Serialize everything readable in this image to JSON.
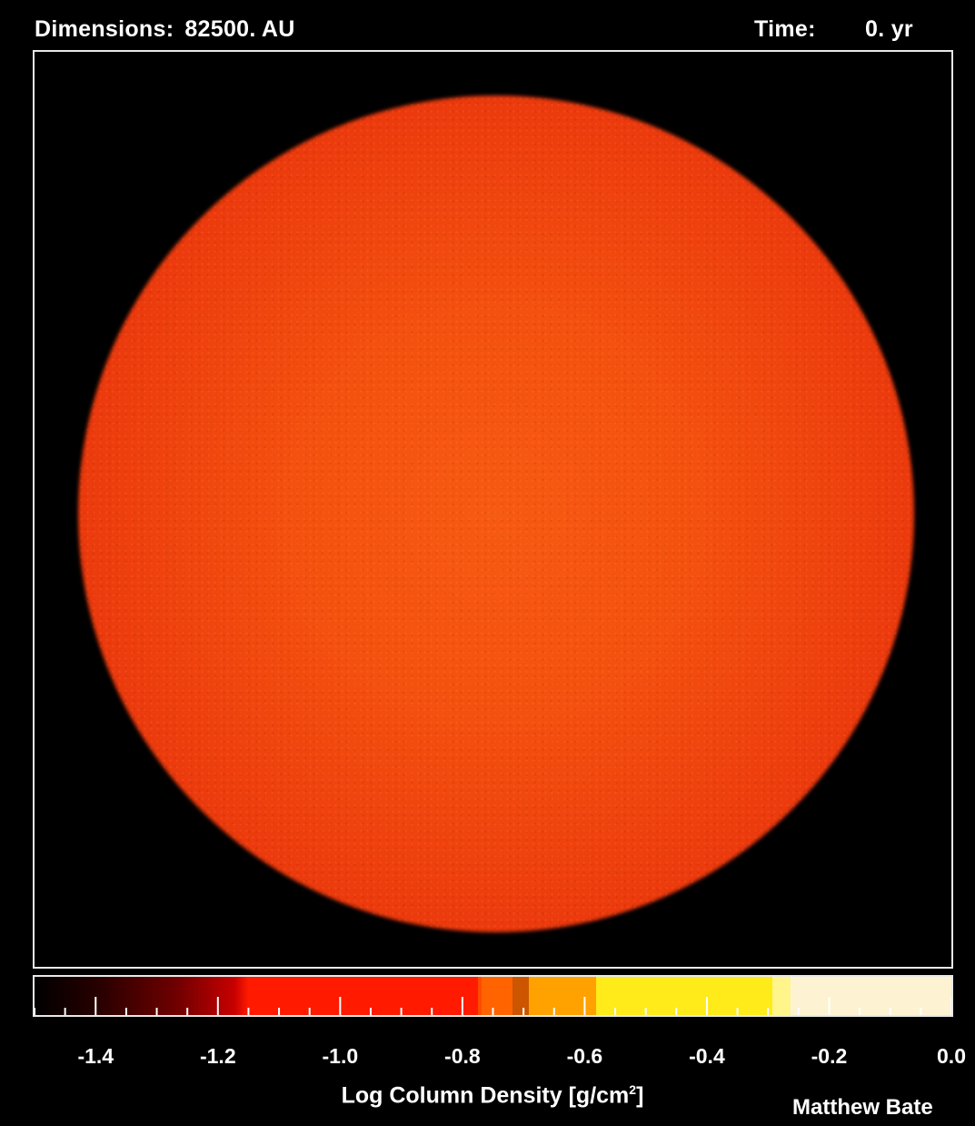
{
  "header": {
    "dimensions_label": "Dimensions:",
    "dimensions_value": "82500. AU",
    "time_label": "Time:",
    "time_value": "0. yr"
  },
  "colorbar": {
    "title_main": "Log Column Density [g/cm",
    "title_sup": "2",
    "title_end": "]",
    "ticks": [
      "-1.4",
      "-1.2",
      "-1.0",
      "-0.8",
      "-0.6",
      "-0.4",
      "-0.2",
      "0.0"
    ],
    "range": [
      -1.5,
      0.0
    ]
  },
  "credit": "Matthew Bate",
  "colors": {
    "background": "#000000",
    "sphere_core": "#f75a12",
    "sphere_edge": "#e02a0a",
    "frame": "#e8e8e8"
  }
}
